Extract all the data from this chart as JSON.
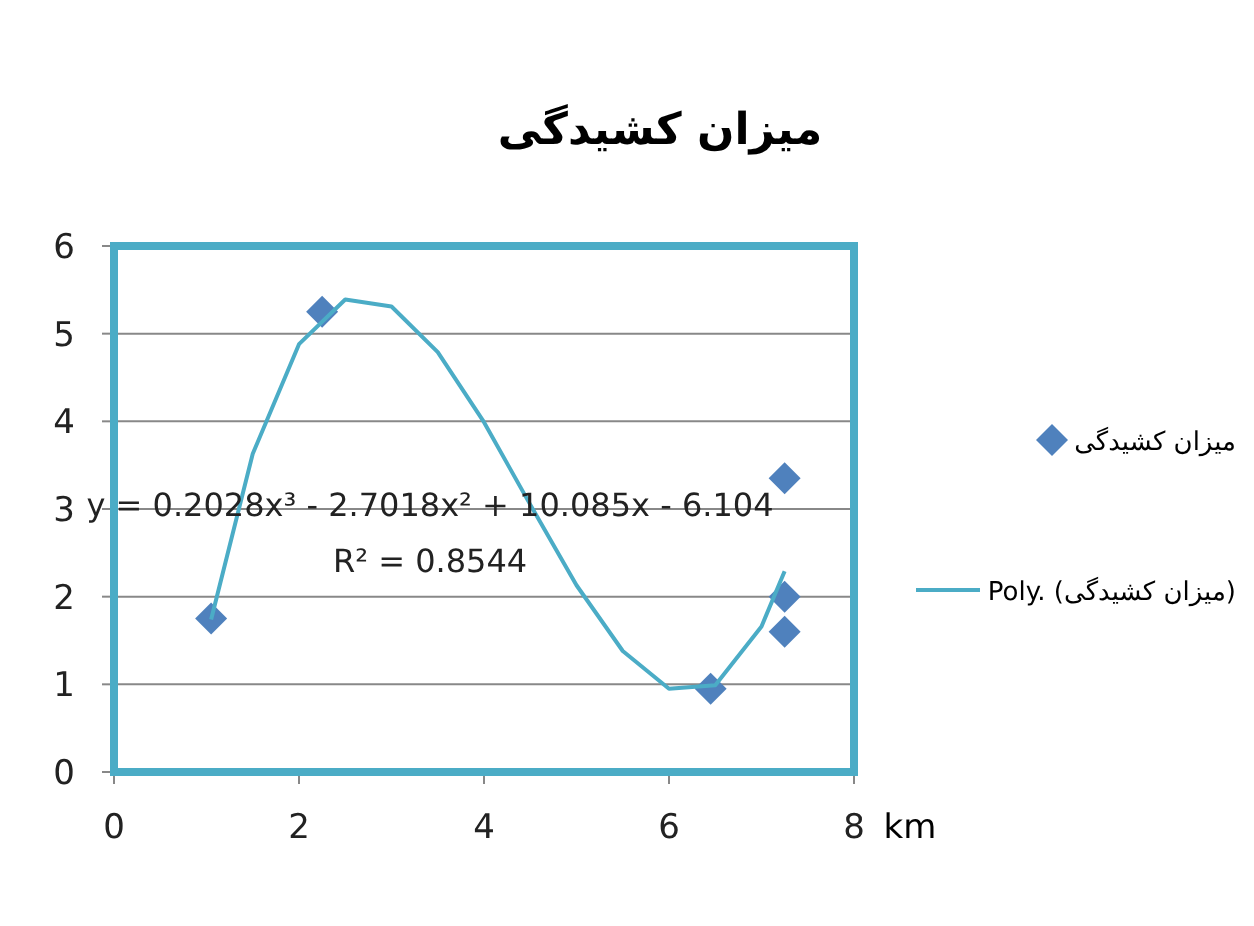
{
  "chart_data": {
    "type": "scatter",
    "title": "میزان کشیدگی",
    "xlabel": "km",
    "xlim": [
      0,
      8
    ],
    "xticks": [
      0,
      2,
      4,
      6,
      8
    ],
    "ylim": [
      0,
      6
    ],
    "yticks": [
      0,
      1,
      2,
      3,
      4,
      5,
      6
    ],
    "grid": "y",
    "legend": "right",
    "marker": "diamond",
    "series": [
      {
        "name": "میزان کشیدگی",
        "color": "#4f81bd",
        "x": [
          1.05,
          2.25,
          6.45,
          7.25,
          7.25,
          7.25
        ],
        "values": [
          1.75,
          5.25,
          0.95,
          3.35,
          2.0,
          1.6
        ]
      },
      {
        "name": "Poly. (میزان کشیدگی)",
        "type": "line",
        "marker": "none",
        "color": "#4bacc6",
        "x": [
          1.05,
          1.5,
          2,
          2.5,
          3,
          3.5,
          4,
          4.5,
          5,
          5.5,
          6,
          6.5,
          7,
          7.25
        ],
        "values": [
          1.74,
          3.63,
          4.88,
          5.39,
          5.31,
          4.79,
          3.99,
          3.05,
          2.13,
          1.38,
          0.95,
          0.99,
          1.66,
          2.29
        ]
      }
    ],
    "annotations": [
      "y = 0.2028x³ - 2.7018x² + 10.085x - 6.104",
      "R² = 0.8544"
    ]
  }
}
